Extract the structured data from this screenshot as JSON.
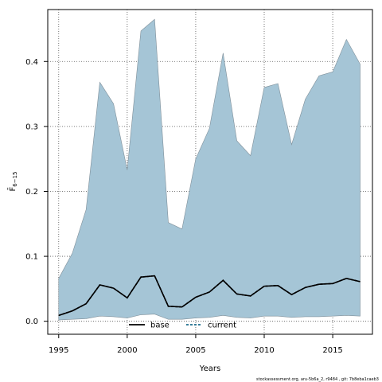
{
  "chart_data": {
    "type": "area",
    "title": "",
    "xlabel": "Years",
    "ylabel": "F̄",
    "ylabel_subscript": "6−15",
    "xlim": [
      1994.2,
      2017.9
    ],
    "ylim": [
      -0.02,
      0.48
    ],
    "xticks": [
      1995,
      2000,
      2005,
      2010,
      2015
    ],
    "yticks": [
      0.0,
      0.1,
      0.2,
      0.3,
      0.4
    ],
    "ytick_labels": [
      "0.0",
      "0.1",
      "0.2",
      "0.3",
      "0.4"
    ],
    "grid": true,
    "legend_placement": "bottom-center",
    "x": [
      1995,
      1996,
      1997,
      1998,
      1999,
      2000,
      2001,
      2002,
      2003,
      2004,
      2005,
      2006,
      2007,
      2008,
      2009,
      2010,
      2011,
      2012,
      2013,
      2014,
      2015,
      2016,
      2017
    ],
    "band": {
      "color": "#a5c5d6",
      "upper": [
        0.066,
        0.105,
        0.172,
        0.368,
        0.335,
        0.233,
        0.447,
        0.465,
        0.152,
        0.142,
        0.25,
        0.297,
        0.413,
        0.278,
        0.255,
        0.36,
        0.366,
        0.272,
        0.342,
        0.378,
        0.384,
        0.434,
        0.396
      ],
      "lower": [
        0.002,
        0.003,
        0.004,
        0.008,
        0.007,
        0.005,
        0.01,
        0.011,
        0.003,
        0.003,
        0.005,
        0.006,
        0.009,
        0.006,
        0.005,
        0.008,
        0.008,
        0.006,
        0.007,
        0.007,
        0.008,
        0.009,
        0.008
      ]
    },
    "series": [
      {
        "name": "base",
        "color": "#000000",
        "style": "solid",
        "values": [
          0.009,
          0.016,
          0.027,
          0.056,
          0.051,
          0.036,
          0.068,
          0.07,
          0.023,
          0.022,
          0.037,
          0.045,
          0.063,
          0.042,
          0.039,
          0.054,
          0.055,
          0.041,
          0.052,
          0.057,
          0.058,
          0.066,
          0.061
        ]
      },
      {
        "name": "current",
        "color": "#1b6c8c",
        "style": "dashed",
        "values": [
          0.009,
          0.016,
          0.027,
          0.056,
          0.051,
          0.036,
          0.068,
          0.07,
          0.023,
          0.022,
          0.037,
          0.045,
          0.063,
          0.042,
          0.039,
          0.054,
          0.055,
          0.041,
          0.052,
          0.057,
          0.058,
          0.066,
          0.061
        ]
      }
    ],
    "caption": "stockassessment.org, aru-5b6a_2, r9484 , git: 7b8eba1caeb3"
  }
}
